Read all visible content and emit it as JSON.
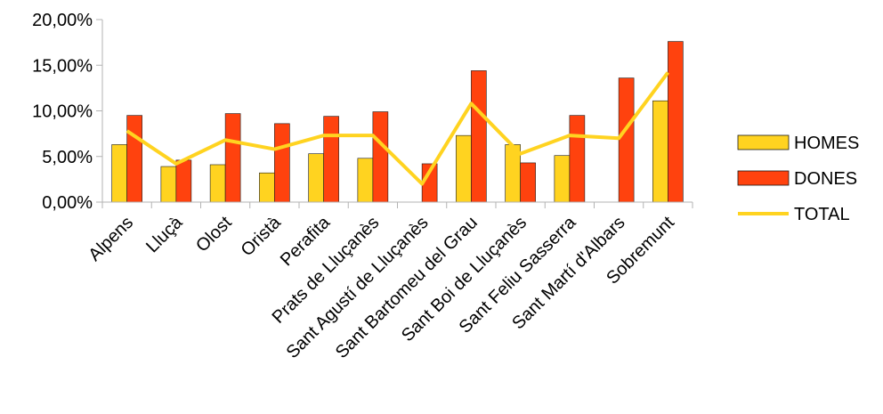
{
  "chart_data": {
    "type": "bar",
    "categories": [
      "Alpens",
      "Lluçà",
      "Olost",
      "Oristà",
      "Perafita",
      "Prats de Lluçanès",
      "Sant Agustí de Lluçanès",
      "Sant Bartomeu del Grau",
      "Sant Boi de Lluçanès",
      "Sant Feliu Sasserra",
      "Sant Martí d'Albars",
      "Sobremunt"
    ],
    "series": [
      {
        "name": "HOMES",
        "kind": "bar",
        "color": "#ffd320",
        "values": [
          6.3,
          3.9,
          4.1,
          3.2,
          5.3,
          4.8,
          0.0,
          7.3,
          6.3,
          5.1,
          0.0,
          11.1
        ]
      },
      {
        "name": "DONES",
        "kind": "bar",
        "color": "#ff420e",
        "values": [
          9.5,
          4.6,
          9.7,
          8.6,
          9.4,
          9.9,
          4.2,
          14.4,
          4.3,
          9.5,
          13.6,
          17.6
        ]
      },
      {
        "name": "TOTAL",
        "kind": "line",
        "color": "#ffd320",
        "values": [
          7.8,
          4.2,
          6.8,
          5.8,
          7.3,
          7.3,
          2.0,
          10.8,
          5.3,
          7.3,
          7.0,
          14.2
        ]
      }
    ],
    "yticks": [
      "0,00%",
      "5,00%",
      "10,00%",
      "15,00%",
      "20,00%"
    ],
    "ylim": [
      0,
      20
    ],
    "legend_position": "right",
    "grid": false
  }
}
